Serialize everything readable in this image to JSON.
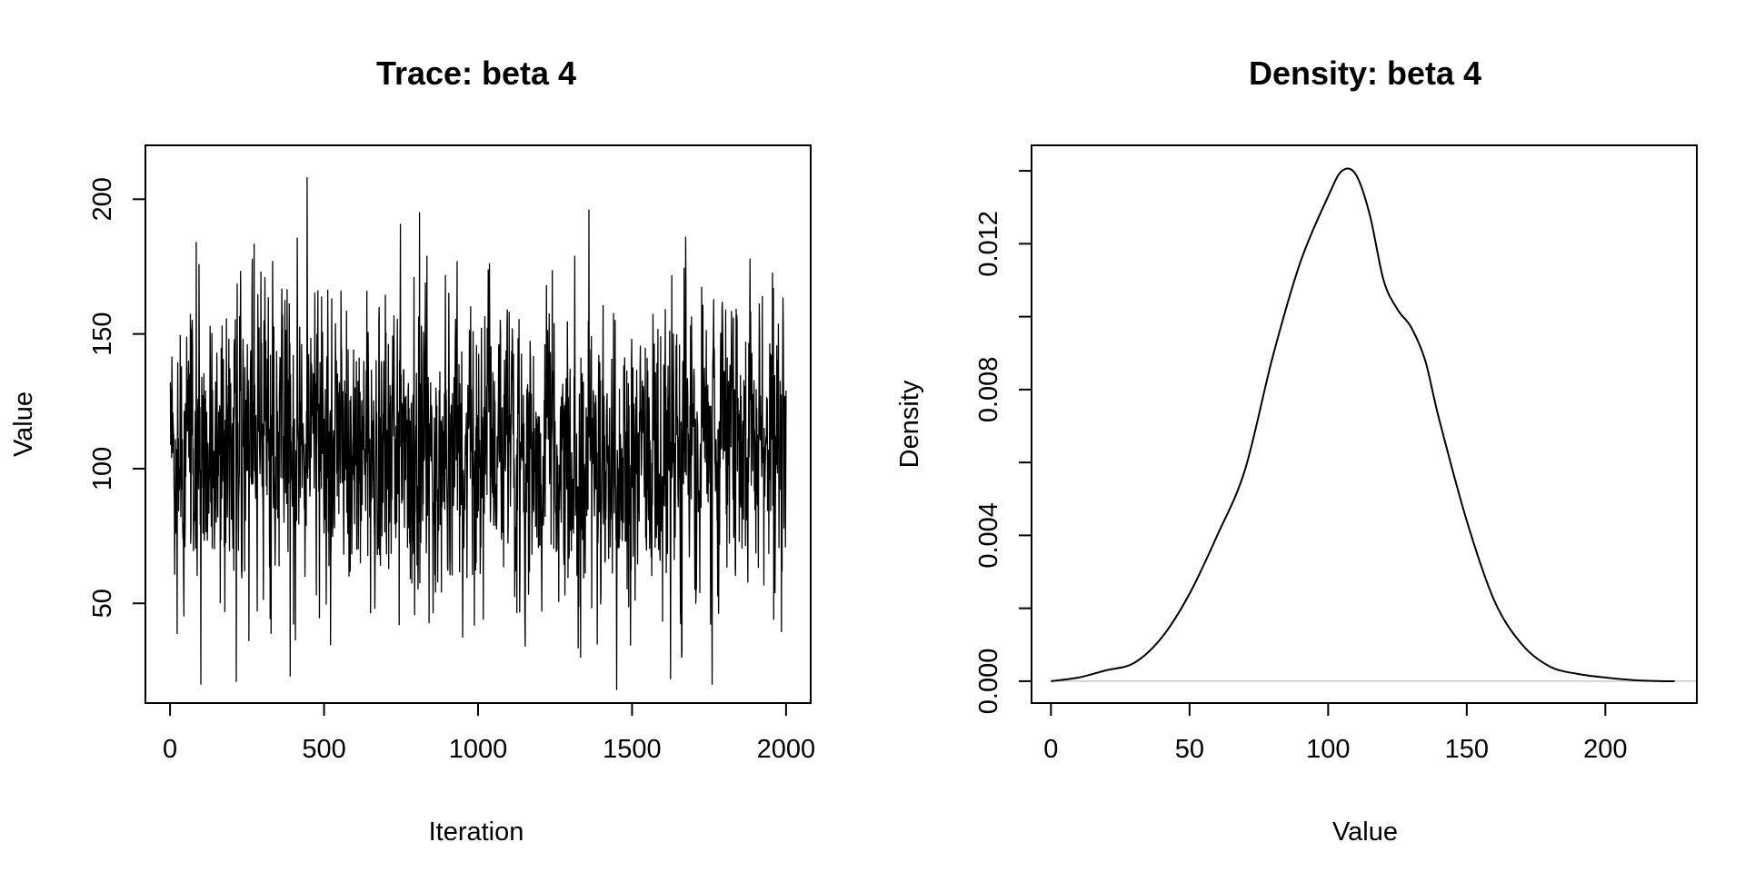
{
  "chart_data": [
    {
      "type": "line",
      "title": "Trace: beta 4",
      "xlabel": "Iteration",
      "ylabel": "Value",
      "xlim": [
        -80,
        2080
      ],
      "ylim": [
        13,
        220
      ],
      "xticks": [
        0,
        500,
        1000,
        1500,
        2000
      ],
      "yticks": [
        50,
        100,
        150,
        200
      ],
      "grid": false,
      "legend": "none",
      "series": [
        {
          "points": 2000,
          "x_range": [
            1,
            2000
          ],
          "center": 107,
          "spread": 27,
          "min": 18,
          "max": 208,
          "extremes": [
            {
              "x": 445,
              "y": 208
            },
            {
              "x": 1360,
              "y": 196
            },
            {
              "x": 810,
              "y": 195
            },
            {
              "x": 85,
              "y": 184
            },
            {
              "x": 1450,
              "y": 18
            },
            {
              "x": 100,
              "y": 20
            },
            {
              "x": 215,
              "y": 21
            },
            {
              "x": 1760,
              "y": 20
            },
            {
              "x": 390,
              "y": 23
            },
            {
              "x": 1625,
              "y": 22
            }
          ],
          "color": "#000000"
        }
      ]
    },
    {
      "type": "line",
      "title": "Density: beta 4",
      "xlabel": "Value",
      "ylabel": "Density",
      "xlim": [
        -7,
        233
      ],
      "ylim": [
        -0.0006,
        0.0147
      ],
      "xticks": [
        0,
        50,
        100,
        150,
        200
      ],
      "yticks": [
        0.0,
        0.004,
        0.008,
        0.012
      ],
      "ytick_labels": [
        "0.000",
        "0.004",
        "0.008",
        "0.012"
      ],
      "grid": false,
      "legend": "none",
      "baseline": 0,
      "baseline_color": "#c8c8c8",
      "series": [
        {
          "x": [
            0,
            10,
            20,
            30,
            40,
            50,
            60,
            70,
            80,
            90,
            100,
            105,
            110,
            115,
            120,
            125,
            130,
            135,
            140,
            150,
            160,
            170,
            180,
            190,
            200,
            210,
            220,
            225
          ],
          "y": [
            0.0,
            0.0001,
            0.0003,
            0.0005,
            0.0012,
            0.0024,
            0.004,
            0.0058,
            0.0089,
            0.0115,
            0.0133,
            0.014,
            0.0139,
            0.0128,
            0.011,
            0.0102,
            0.0097,
            0.0088,
            0.0072,
            0.0044,
            0.0022,
            0.001,
            0.0004,
            0.0002,
            0.0001,
            3e-05,
            0.0,
            0.0
          ],
          "color": "#000000"
        }
      ]
    }
  ]
}
